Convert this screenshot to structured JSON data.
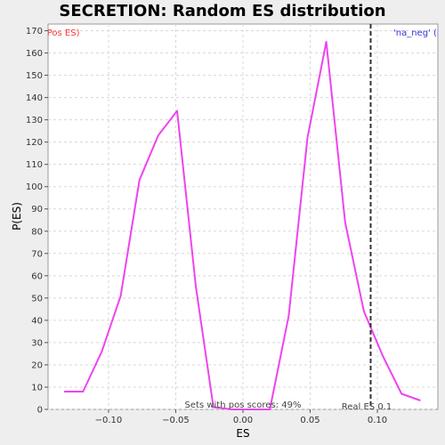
{
  "chart_data": {
    "type": "line",
    "title": "SECRETION: Random ES distribution",
    "xlabel": "ES",
    "ylabel": "P(ES)",
    "xlim": [
      -0.145,
      0.145
    ],
    "ylim": [
      0,
      173
    ],
    "x_ticks": [
      -0.1,
      -0.05,
      0.0,
      0.05,
      0.1
    ],
    "x_tick_labels": [
      "−0.10",
      "−0.05",
      "0.00",
      "0.05",
      "0.10"
    ],
    "y_ticks": [
      0,
      10,
      20,
      30,
      40,
      50,
      60,
      70,
      80,
      90,
      100,
      110,
      120,
      130,
      140,
      150,
      160,
      170
    ],
    "grid": true,
    "series": [
      {
        "color": "#ee44ee",
        "x": [
          -0.133,
          -0.119,
          -0.105,
          -0.091,
          -0.077,
          -0.063,
          -0.049,
          -0.035,
          -0.022,
          -0.008,
          0.006,
          0.02,
          0.034,
          0.048,
          0.062,
          0.076,
          0.09,
          0.104,
          0.118,
          0.132
        ],
        "y": [
          8,
          8,
          26,
          51,
          103,
          123,
          134,
          55,
          1,
          0,
          0,
          0,
          42,
          122,
          165,
          84,
          44,
          24,
          7,
          4
        ]
      }
    ],
    "real_es": 0.095,
    "annotations": {
      "left_legend": "'na_pos' (Pos ES)",
      "left_legend_color": "#ff3333",
      "right_legend": "'na_neg' (Neg ES)",
      "right_legend_color": "#3333dd",
      "pos_scores": "Sets with pos scores: 49%",
      "real_es_label": "Real ES 0.1"
    }
  }
}
